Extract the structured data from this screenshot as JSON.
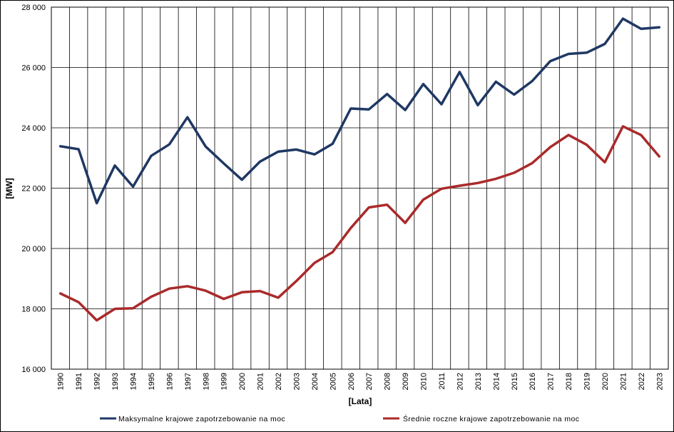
{
  "chart_data": {
    "type": "line",
    "xlabel": "[Lata]",
    "ylabel": "[MW]",
    "ylim": [
      16000,
      28000
    ],
    "yticks": [
      16000,
      18000,
      20000,
      22000,
      24000,
      26000,
      28000
    ],
    "ytick_labels": [
      "16 000",
      "18 000",
      "20 000",
      "22 000",
      "24 000",
      "26 000",
      "28 000"
    ],
    "grid": true,
    "legend_position": "bottom",
    "categories": [
      "1990",
      "1991",
      "1992",
      "1993",
      "1994",
      "1995",
      "1996",
      "1997",
      "1998",
      "1999",
      "2000",
      "2001",
      "2002",
      "2003",
      "2004",
      "2005",
      "2006",
      "2007",
      "2008",
      "2009",
      "2010",
      "2011",
      "2012",
      "2013",
      "2014",
      "2015",
      "2016",
      "2017",
      "2018",
      "2019",
      "2020",
      "2021",
      "2022",
      "2023"
    ],
    "series": [
      {
        "name": "Maksymalne krajowe zapotrzebowanie na moc",
        "color": "#1f3864",
        "values": [
          23390,
          23290,
          21500,
          22750,
          22050,
          23070,
          23450,
          24350,
          23380,
          22820,
          22280,
          22880,
          23210,
          23280,
          23120,
          23470,
          24640,
          24610,
          25120,
          24590,
          25450,
          24780,
          25850,
          24750,
          25530,
          25100,
          25550,
          26210,
          26450,
          26490,
          26780,
          27620,
          27280,
          27330
        ]
      },
      {
        "name": "Średnie roczne krajowe zapotrzebowanie na moc",
        "color": "#aa2a2a",
        "values": [
          18510,
          18220,
          17620,
          18000,
          18020,
          18400,
          18670,
          18750,
          18600,
          18330,
          18550,
          18590,
          18370,
          18920,
          19520,
          19880,
          20680,
          21360,
          21450,
          20850,
          21620,
          21980,
          22080,
          22170,
          22310,
          22510,
          22830,
          23360,
          23760,
          23440,
          22860,
          24050,
          23760,
          23050
        ]
      }
    ]
  }
}
